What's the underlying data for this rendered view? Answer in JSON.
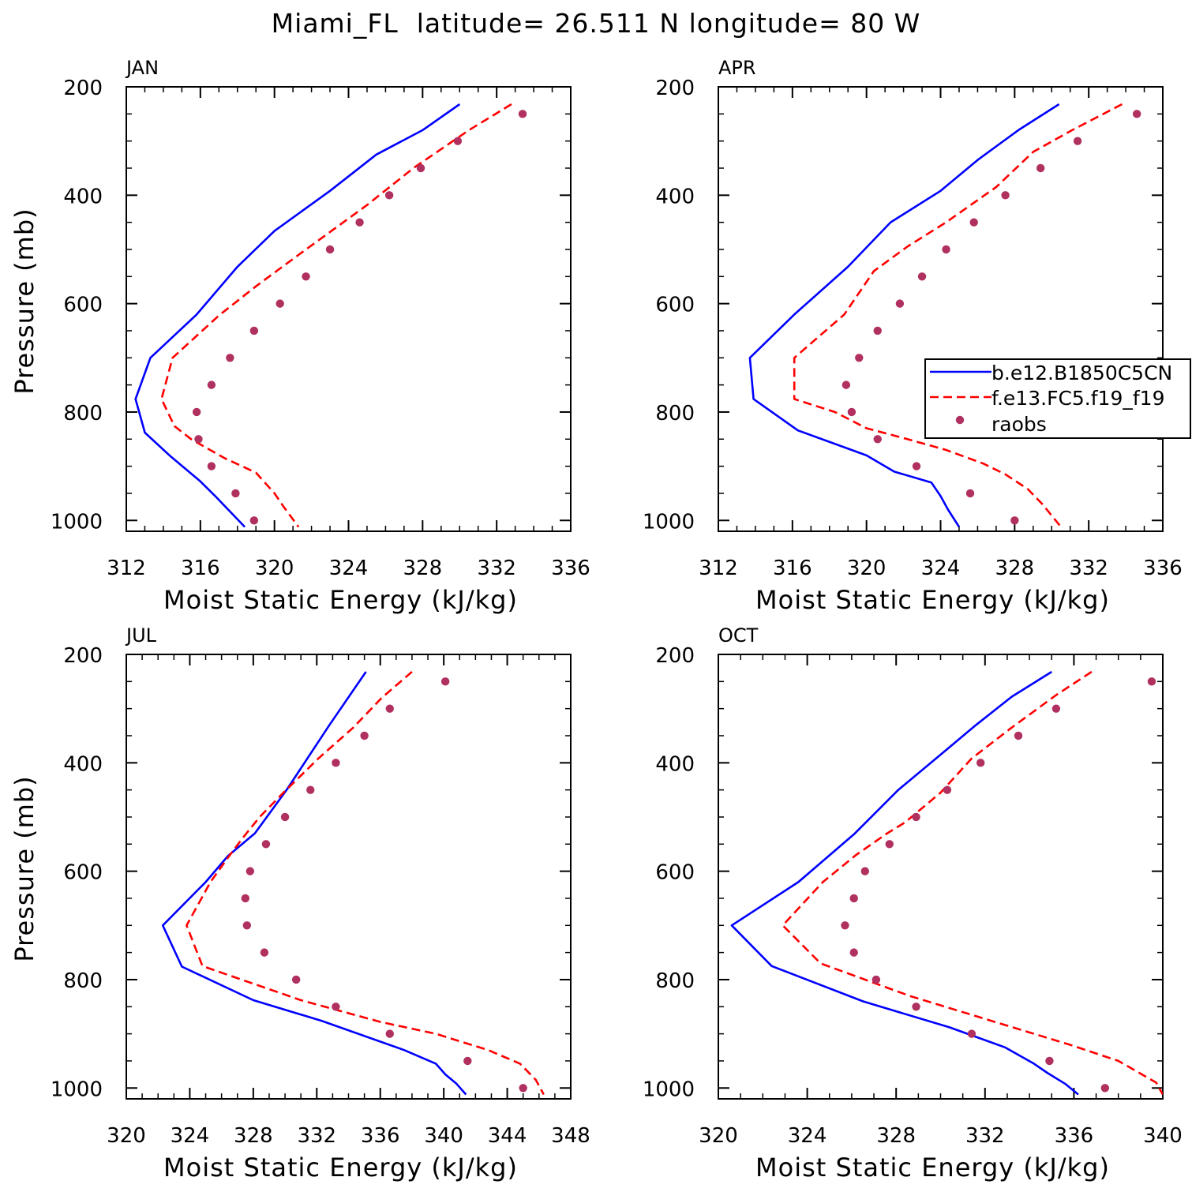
{
  "title": "Miami_FL  latitude= 26.511 N longitude= 80 W",
  "colors": {
    "model1": "#0000ff",
    "model2": "#ff0000",
    "obs": "#b03060",
    "axis": "#000000"
  },
  "chart_data": [
    {
      "type": "line",
      "panel_label": "JAN",
      "xlabel": "Moist Static Energy (kJ/kg)",
      "ylabel": "Pressure (mb)",
      "xlim": [
        312,
        336
      ],
      "ylim": [
        1020,
        200
      ],
      "xticks": [
        312,
        316,
        320,
        324,
        328,
        332,
        336
      ],
      "yticks": [
        200,
        400,
        600,
        800,
        1000
      ],
      "series": [
        {
          "name": "b.e12.B1850C5CN",
          "style": "solid",
          "points": [
            [
              330,
              232
            ],
            [
              328,
              280
            ],
            [
              325.5,
              325
            ],
            [
              323,
              392
            ],
            [
              320,
              466
            ],
            [
              318,
              532
            ],
            [
              315.8,
              620
            ],
            [
              313.3,
              700
            ],
            [
              312.5,
              776
            ],
            [
              313.0,
              838
            ],
            [
              314.4,
              882
            ],
            [
              316.0,
              928
            ],
            [
              316.8,
              955
            ],
            [
              317.5,
              980
            ],
            [
              318.4,
              1012
            ]
          ]
        },
        {
          "name": "f.e13.FC5.f19_f19",
          "style": "dashed",
          "points": [
            [
              332.8,
              232
            ],
            [
              330.5,
              280
            ],
            [
              327.5,
              350
            ],
            [
              325,
              418
            ],
            [
              321.5,
              505
            ],
            [
              319,
              568
            ],
            [
              317,
              622
            ],
            [
              314.5,
              700
            ],
            [
              313.9,
              776
            ],
            [
              314.6,
              826
            ],
            [
              315.5,
              850
            ],
            [
              317.3,
              885
            ],
            [
              319,
              912
            ],
            [
              320.0,
              950
            ],
            [
              320.5,
              975
            ],
            [
              321.3,
              1012
            ]
          ]
        }
      ],
      "obs": {
        "name": "raobs",
        "points": [
          [
            333.4,
            250
          ],
          [
            329.9,
            300
          ],
          [
            327.9,
            350
          ],
          [
            326.2,
            400
          ],
          [
            324.6,
            450
          ],
          [
            323.0,
            500
          ],
          [
            321.7,
            550
          ],
          [
            320.3,
            600
          ],
          [
            318.9,
            650
          ],
          [
            317.6,
            700
          ],
          [
            316.6,
            750
          ],
          [
            315.8,
            800
          ],
          [
            315.9,
            850
          ],
          [
            316.6,
            900
          ],
          [
            317.9,
            950
          ],
          [
            318.9,
            1000
          ]
        ]
      }
    },
    {
      "type": "line",
      "panel_label": "APR",
      "xlabel": "Moist Static Energy (kJ/kg)",
      "ylabel": "",
      "xlim": [
        312,
        336
      ],
      "ylim": [
        1020,
        200
      ],
      "xticks": [
        312,
        316,
        320,
        324,
        328,
        332,
        336
      ],
      "yticks": [
        200,
        400,
        600,
        800,
        1000
      ],
      "legend": {
        "position": "right",
        "entries": [
          "b.e12.B1850C5CN",
          "f.e13.FC5.f19_f19",
          "raobs"
        ]
      },
      "series": [
        {
          "name": "b.e12.B1850C5CN",
          "style": "solid",
          "points": [
            [
              330.4,
              232
            ],
            [
              328.2,
              280
            ],
            [
              326,
              335
            ],
            [
              324,
              392
            ],
            [
              321.3,
              450
            ],
            [
              319,
              532
            ],
            [
              316.1,
              620
            ],
            [
              313.7,
              700
            ],
            [
              313.9,
              776
            ],
            [
              316.3,
              834
            ],
            [
              320,
              880
            ],
            [
              321.5,
              910
            ],
            [
              323.5,
              930
            ],
            [
              324.0,
              955
            ],
            [
              324.4,
              980
            ],
            [
              325.0,
              1012
            ]
          ]
        },
        {
          "name": "f.e13.FC5.f19_f19",
          "style": "dashed",
          "points": [
            [
              333.8,
              232
            ],
            [
              331.1,
              280
            ],
            [
              329,
              320
            ],
            [
              327,
              385
            ],
            [
              324.3,
              450
            ],
            [
              322.2,
              495
            ],
            [
              320.4,
              540
            ],
            [
              318.8,
              620
            ],
            [
              316.1,
              700
            ],
            [
              316.1,
              776
            ],
            [
              318.3,
              800
            ],
            [
              320,
              830
            ],
            [
              322,
              848
            ],
            [
              324.3,
              870
            ],
            [
              326.3,
              895
            ],
            [
              327.5,
              915
            ],
            [
              328.7,
              942
            ],
            [
              329.5,
              970
            ],
            [
              330.5,
              1012
            ]
          ]
        }
      ],
      "obs": {
        "name": "raobs",
        "points": [
          [
            334.6,
            250
          ],
          [
            331.4,
            300
          ],
          [
            329.4,
            350
          ],
          [
            327.5,
            400
          ],
          [
            325.8,
            450
          ],
          [
            324.3,
            500
          ],
          [
            323.0,
            550
          ],
          [
            321.8,
            600
          ],
          [
            320.6,
            650
          ],
          [
            319.6,
            700
          ],
          [
            318.9,
            750
          ],
          [
            319.2,
            800
          ],
          [
            320.6,
            850
          ],
          [
            322.7,
            900
          ],
          [
            325.6,
            950
          ],
          [
            328.0,
            1000
          ]
        ]
      }
    },
    {
      "type": "line",
      "panel_label": "JUL",
      "xlabel": "Moist Static Energy (kJ/kg)",
      "ylabel": "Pressure (mb)",
      "xlim": [
        320,
        348
      ],
      "ylim": [
        1020,
        200
      ],
      "xticks": [
        320,
        324,
        328,
        332,
        336,
        340,
        344,
        348
      ],
      "yticks": [
        200,
        400,
        600,
        800,
        1000
      ],
      "series": [
        {
          "name": "b.e12.B1850C5CN",
          "style": "solid",
          "points": [
            [
              335.1,
              232
            ],
            [
              332.8,
              330
            ],
            [
              330.1,
              450
            ],
            [
              328.1,
              530
            ],
            [
              326.4,
              572
            ],
            [
              325.0,
              620
            ],
            [
              322.3,
              700
            ],
            [
              323.5,
              776
            ],
            [
              328,
              838
            ],
            [
              332.3,
              876
            ],
            [
              337.5,
              930
            ],
            [
              339.5,
              955
            ],
            [
              340.1,
              975
            ],
            [
              340.8,
              992
            ],
            [
              341.4,
              1012
            ]
          ]
        },
        {
          "name": "f.e13.FC5.f19_f19",
          "style": "dashed",
          "points": [
            [
              338,
              232
            ],
            [
              336.1,
              280
            ],
            [
              334.3,
              335
            ],
            [
              332.1,
              392
            ],
            [
              329.9,
              455
            ],
            [
              328.4,
              500
            ],
            [
              327.3,
              540
            ],
            [
              326.4,
              575
            ],
            [
              325.3,
              620
            ],
            [
              323.8,
              700
            ],
            [
              324.8,
              775
            ],
            [
              331,
              838
            ],
            [
              336,
              878
            ],
            [
              339.5,
              900
            ],
            [
              342.8,
              930
            ],
            [
              344.8,
              955
            ],
            [
              345.8,
              985
            ],
            [
              346.3,
              1012
            ]
          ]
        }
      ],
      "obs": {
        "name": "raobs",
        "points": [
          [
            340.1,
            250
          ],
          [
            336.6,
            300
          ],
          [
            335.0,
            350
          ],
          [
            333.2,
            400
          ],
          [
            331.6,
            450
          ],
          [
            330.0,
            500
          ],
          [
            328.8,
            550
          ],
          [
            327.8,
            600
          ],
          [
            327.5,
            650
          ],
          [
            327.6,
            700
          ],
          [
            328.7,
            750
          ],
          [
            330.7,
            800
          ],
          [
            333.2,
            850
          ],
          [
            336.6,
            900
          ],
          [
            341.5,
            950
          ],
          [
            345.0,
            1000
          ]
        ]
      }
    },
    {
      "type": "line",
      "panel_label": "OCT",
      "xlabel": "Moist Static Energy (kJ/kg)",
      "ylabel": "",
      "xlim": [
        320,
        340
      ],
      "ylim": [
        1020,
        200
      ],
      "xticks": [
        320,
        324,
        328,
        332,
        336,
        340
      ],
      "yticks": [
        200,
        400,
        600,
        800,
        1000
      ],
      "series": [
        {
          "name": "b.e12.B1850C5CN",
          "style": "solid",
          "points": [
            [
              335,
              232
            ],
            [
              333.2,
              278
            ],
            [
              331.6,
              330
            ],
            [
              330,
              385
            ],
            [
              328.1,
              450
            ],
            [
              326.1,
              532
            ],
            [
              323.6,
              620
            ],
            [
              320.6,
              700
            ],
            [
              322.4,
              775
            ],
            [
              326.5,
              840
            ],
            [
              330.4,
              888
            ],
            [
              332.9,
              925
            ],
            [
              334.2,
              955
            ],
            [
              334.8,
              972
            ],
            [
              335.6,
              992
            ],
            [
              336.2,
              1012
            ]
          ]
        },
        {
          "name": "f.e13.FC5.f19_f19",
          "style": "dashed",
          "points": [
            [
              336.8,
              232
            ],
            [
              335.2,
              275
            ],
            [
              333.2,
              335
            ],
            [
              331.4,
              392
            ],
            [
              330,
              455
            ],
            [
              328.4,
              510
            ],
            [
              327.6,
              530
            ],
            [
              326.2,
              570
            ],
            [
              324.7,
              620
            ],
            [
              322.9,
              700
            ],
            [
              324.6,
              770
            ],
            [
              328.6,
              830
            ],
            [
              333,
              885
            ],
            [
              335.8,
              920
            ],
            [
              338,
              950
            ],
            [
              339.7,
              990
            ],
            [
              340,
              1012
            ]
          ]
        }
      ],
      "obs": {
        "name": "raobs",
        "points": [
          [
            339.5,
            250
          ],
          [
            335.2,
            300
          ],
          [
            333.5,
            350
          ],
          [
            331.8,
            400
          ],
          [
            330.3,
            450
          ],
          [
            328.9,
            500
          ],
          [
            327.7,
            550
          ],
          [
            326.6,
            600
          ],
          [
            326.1,
            650
          ],
          [
            325.7,
            700
          ],
          [
            326.1,
            750
          ],
          [
            327.1,
            800
          ],
          [
            328.9,
            850
          ],
          [
            331.4,
            900
          ],
          [
            334.9,
            950
          ],
          [
            337.4,
            1000
          ]
        ]
      }
    }
  ]
}
